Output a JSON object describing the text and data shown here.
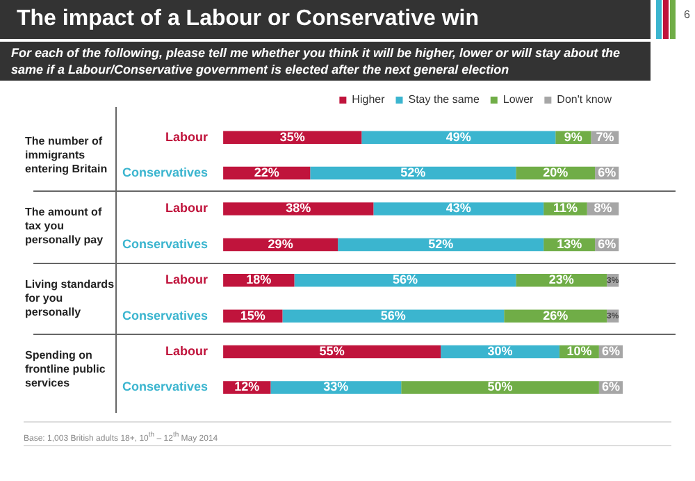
{
  "chart_data": {
    "type": "bar",
    "orientation": "horizontal",
    "stacked": true,
    "legend": "top",
    "title": "The impact of a Labour or Conservative win",
    "subtitle": "For each of the following, please tell me whether you think it will be higher, lower or will stay about the same if a Labour/Conservative government is elected after the next general election",
    "categories": [
      "Labour",
      "Conservatives",
      "Labour",
      "Conservatives",
      "Labour",
      "Conservatives",
      "Labour",
      "Conservatives"
    ],
    "series": [
      {
        "name": "Higher",
        "color": "#c0143c",
        "values": [
          35,
          22,
          38,
          29,
          18,
          15,
          55,
          12
        ],
        "value_labels": [
          "35%",
          "22%",
          "38%",
          "29%",
          "18%",
          "15%",
          "55%",
          "12%"
        ]
      },
      {
        "name": "Stay the same",
        "color": "#3bb5cf",
        "values": [
          49,
          52,
          43,
          52,
          56,
          56,
          30,
          33
        ],
        "value_labels": [
          "49%",
          "52%",
          "43%",
          "52%",
          "56%",
          "56%",
          "30%",
          "33%"
        ]
      },
      {
        "name": "Lower",
        "color": "#70ad47",
        "values": [
          9,
          20,
          11,
          13,
          23,
          26,
          10,
          50
        ],
        "value_labels": [
          "9%",
          "20%",
          "11%",
          "13%",
          "23%",
          "26%",
          "10%",
          "50%"
        ]
      },
      {
        "name": "Don't know",
        "color": "#a6a6a6",
        "values": [
          7,
          6,
          8,
          6,
          3,
          3,
          6,
          6
        ],
        "value_labels": [
          "7%",
          "6%",
          "8%",
          "6%",
          "3%",
          "3%",
          "6%",
          "6%"
        ]
      }
    ],
    "annotations": [
      "The number of immigrants entering Britain",
      "The amount of tax you personally pay",
      "Living standards for you personally",
      "Spending on frontline public services",
      "Base: 1,003 British adults 18+, 10$^{th}$ – 12$^{th}$ May 2014",
      "6"
    ]
  }
}
